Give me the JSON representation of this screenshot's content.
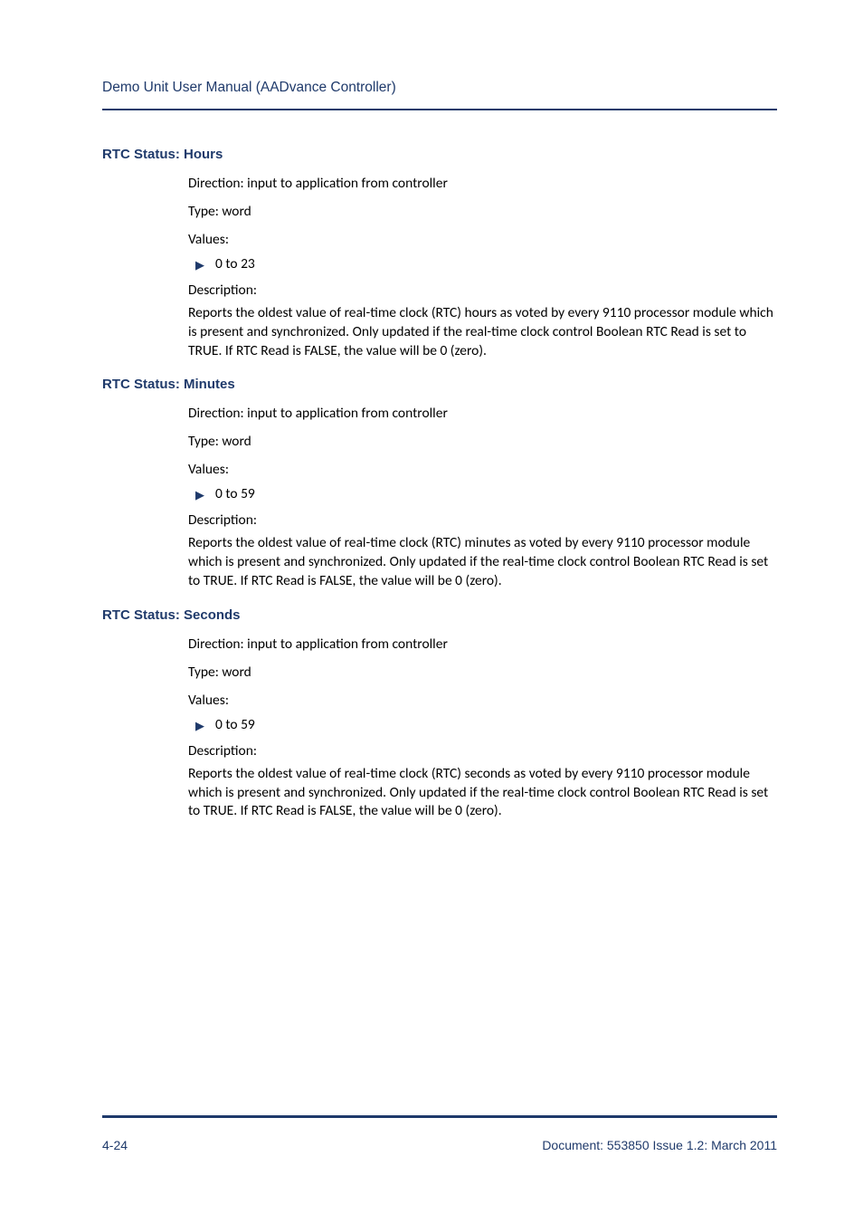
{
  "colors": {
    "brand": "#1f3a6b",
    "text": "#000000",
    "background": "#ffffff"
  },
  "typography": {
    "running_head_font": "Arial",
    "running_head_size_pt": 12,
    "section_title_font": "Arial",
    "section_title_size_pt": 11,
    "section_title_weight": "bold",
    "body_font": "Gill Sans",
    "body_size_pt": 12
  },
  "running_head": "Demo Unit User Manual  (AADvance Controller)",
  "sections": [
    {
      "title": "RTC Status: Hours",
      "direction": "Direction: input to application from controller",
      "type": "Type: word",
      "values_label": "Values:",
      "values_item": "0 to 23",
      "desc_label": "Description:",
      "desc_body": "Reports the oldest value of real-time clock (RTC) hours as voted by every 9110 processor module which is present and synchronized. Only updated if the real-time clock control Boolean RTC Read is set to TRUE. If RTC Read is FALSE, the value will be 0 (zero)."
    },
    {
      "title": "RTC Status: Minutes",
      "direction": "Direction: input to application from controller",
      "type": "Type: word",
      "values_label": "Values:",
      "values_item": "0 to 59",
      "desc_label": "Description:",
      "desc_body": "Reports the oldest value of real-time clock (RTC) minutes as voted by every 9110 processor module which is present and synchronized. Only updated if the real-time clock control Boolean RTC Read is set to TRUE. If RTC Read is FALSE, the value will be 0 (zero)."
    },
    {
      "title": "RTC Status: Seconds",
      "direction": "Direction: input to application from controller",
      "type": "Type: word",
      "values_label": "Values:",
      "values_item": "0 to 59",
      "desc_label": "Description:",
      "desc_body": "Reports the oldest value of real-time clock (RTC) seconds as voted by every 9110 processor module which is present and synchronized. Only updated if the real-time clock control Boolean RTC Read is set to TRUE. If RTC Read is FALSE, the value will be 0 (zero)."
    }
  ],
  "footer": {
    "left": "4-24",
    "right": "Document: 553850 Issue 1.2: March 2011"
  }
}
